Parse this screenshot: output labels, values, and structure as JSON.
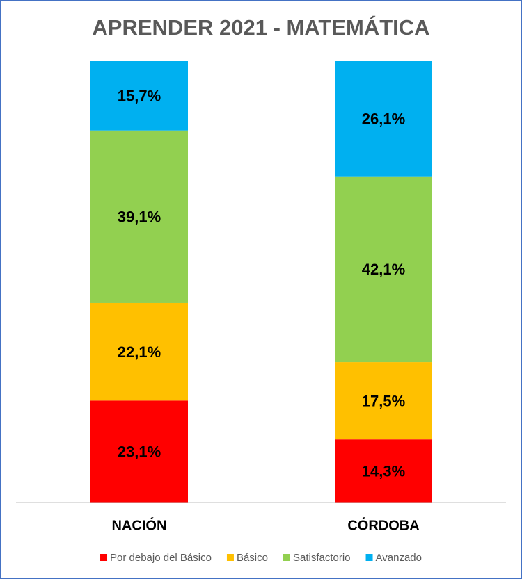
{
  "chart_data": {
    "type": "stacked_bar",
    "title": "APRENDER 2021 - MATEMÁTICA",
    "categories": [
      "NACIÓN",
      "CÓRDOBA"
    ],
    "ylim": [
      0,
      100
    ],
    "series": [
      {
        "name": "Por debajo del Básico",
        "color": "#ff0000",
        "values": [
          23.1,
          14.3
        ],
        "value_labels": [
          "23,1%",
          "14,3%"
        ]
      },
      {
        "name": "Básico",
        "color": "#ffc000",
        "values": [
          22.1,
          17.5
        ],
        "value_labels": [
          "22,1%",
          "17,5%"
        ]
      },
      {
        "name": "Satisfactorio",
        "color": "#92d050",
        "values": [
          39.1,
          42.1
        ],
        "value_labels": [
          "39,1%",
          "42,1%"
        ]
      },
      {
        "name": "Avanzado",
        "color": "#00b0f0",
        "values": [
          15.7,
          26.1
        ],
        "value_labels": [
          "15,7%",
          "26,1%"
        ]
      }
    ],
    "legend": "bottom"
  }
}
